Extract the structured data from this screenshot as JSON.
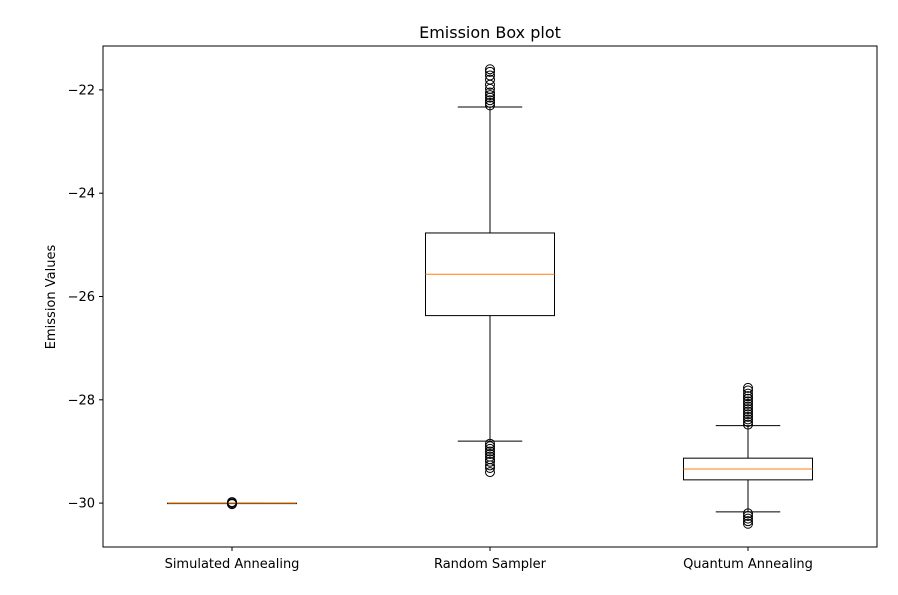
{
  "chart_data": {
    "type": "box",
    "title": "Emission Box plot",
    "xlabel": "",
    "ylabel": "Emission Values",
    "ylim": [
      -30.85,
      -21.15
    ],
    "yticks": [
      -22,
      -24,
      -26,
      -28,
      -30
    ],
    "ytick_labels": [
      "−22",
      "−24",
      "−26",
      "−28",
      "−30"
    ],
    "grid": false,
    "categories": [
      "Simulated Annealing",
      "Random Sampler",
      "Quantum Annealing"
    ],
    "series": [
      {
        "category": "Simulated Annealing",
        "whisker_low": -30.0,
        "q1": -30.0,
        "median": -30.0,
        "q3": -30.0,
        "whisker_high": -30.0,
        "outliers": [
          -29.98,
          -29.99,
          -30.01,
          -30.02
        ]
      },
      {
        "category": "Random Sampler",
        "whisker_low": -28.8,
        "q1": -26.37,
        "median": -25.57,
        "q3": -24.77,
        "whisker_high": -22.33,
        "outliers": [
          -21.6,
          -21.65,
          -21.72,
          -21.8,
          -21.9,
          -21.98,
          -22.05,
          -22.1,
          -22.15,
          -22.2,
          -22.25,
          -22.3,
          -28.85,
          -28.9,
          -28.95,
          -29.0,
          -29.05,
          -29.1,
          -29.15,
          -29.2,
          -29.27,
          -29.32,
          -29.4
        ]
      },
      {
        "category": "Quantum Annealing",
        "whisker_low": -30.17,
        "q1": -29.55,
        "median": -29.34,
        "q3": -29.13,
        "whisker_high": -28.5,
        "outliers": [
          -27.77,
          -27.82,
          -27.88,
          -27.93,
          -27.98,
          -28.03,
          -28.08,
          -28.13,
          -28.18,
          -28.23,
          -28.28,
          -28.33,
          -28.38,
          -28.43,
          -28.48,
          -30.2,
          -30.25,
          -30.3,
          -30.35,
          -30.4
        ]
      }
    ],
    "colors": {
      "box": "#000000",
      "median": "#ff7f0e",
      "flier": "#000000"
    }
  }
}
